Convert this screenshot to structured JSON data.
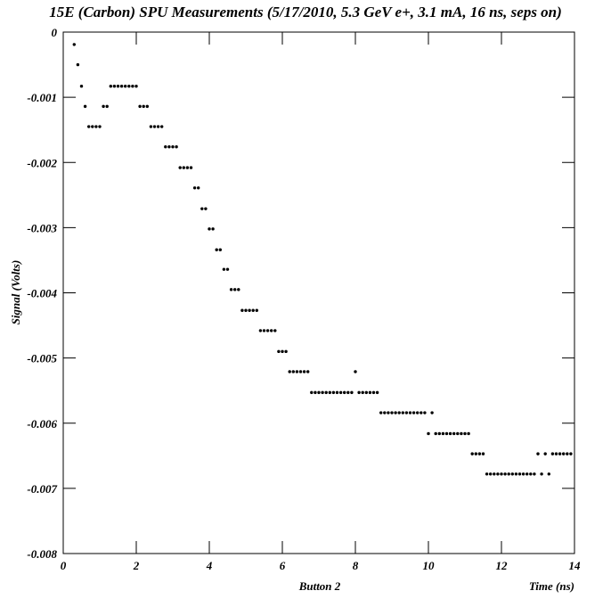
{
  "chart_data": {
    "type": "scatter",
    "title": "15E (Carbon) SPU Measurements (5/17/2010, 5.3 GeV e+, 3.1 mA, 16 ns, seps on)",
    "x_label": "Time (ns)",
    "x_sublabel": "Button 2",
    "y_label": "Signal (Volts)",
    "color": "#000000",
    "xlim": [
      0,
      14
    ],
    "xticks": [
      0,
      2,
      4,
      6,
      8,
      10,
      12,
      14
    ],
    "ylim": [
      -0.008,
      0
    ],
    "yticks": [
      0,
      -0.001,
      -0.002,
      -0.003,
      -0.004,
      -0.005,
      -0.006,
      -0.007,
      -0.008
    ],
    "x": [
      0.3,
      0.4,
      0.5,
      0.6,
      0.7,
      0.8,
      0.9,
      1.0,
      1.1,
      1.2,
      1.3,
      1.4,
      1.5,
      1.6,
      1.7,
      1.8,
      1.9,
      2.0,
      2.1,
      2.2,
      2.3,
      2.4,
      2.5,
      2.6,
      2.7,
      2.8,
      2.9,
      3.0,
      3.1,
      3.2,
      3.3,
      3.4,
      3.5,
      3.6,
      3.7,
      3.8,
      3.9,
      4.0,
      4.1,
      4.2,
      4.3,
      4.4,
      4.5,
      4.6,
      4.7,
      4.8,
      4.9,
      5.0,
      5.1,
      5.2,
      5.3,
      5.4,
      5.5,
      5.6,
      5.7,
      5.8,
      5.9,
      6.0,
      6.1,
      6.2,
      6.3,
      6.4,
      6.5,
      6.6,
      6.7,
      6.8,
      6.9,
      7.0,
      7.1,
      7.2,
      7.3,
      7.4,
      7.5,
      7.6,
      7.7,
      7.8,
      7.9,
      8.0,
      8.1,
      8.2,
      8.3,
      8.4,
      8.5,
      8.6,
      8.7,
      8.8,
      8.9,
      9.0,
      9.1,
      9.2,
      9.3,
      9.4,
      9.5,
      9.6,
      9.7,
      9.8,
      9.9,
      10.0,
      10.1,
      10.2,
      10.3,
      10.4,
      10.5,
      10.6,
      10.7,
      10.8,
      10.9,
      11.0,
      11.1,
      11.2,
      11.3,
      11.4,
      11.5,
      11.6,
      11.7,
      11.8,
      11.9,
      12.0,
      12.1,
      12.2,
      12.3,
      12.4,
      12.5,
      12.6,
      12.7,
      12.8,
      12.9,
      13.0,
      13.1,
      13.2,
      13.3,
      13.4,
      13.5,
      13.6,
      13.7,
      13.8,
      13.9
    ],
    "values": [
      -0.00019,
      -0.0005,
      -0.00083,
      -0.00114,
      -0.00145,
      -0.00145,
      -0.00145,
      -0.00145,
      -0.00114,
      -0.00114,
      -0.00083,
      -0.00083,
      -0.00083,
      -0.00083,
      -0.00083,
      -0.00083,
      -0.00083,
      -0.00083,
      -0.00114,
      -0.00114,
      -0.00114,
      -0.00145,
      -0.00145,
      -0.00145,
      -0.00145,
      -0.00176,
      -0.00176,
      -0.00176,
      -0.00176,
      -0.00208,
      -0.00208,
      -0.00208,
      -0.00208,
      -0.00239,
      -0.00239,
      -0.00271,
      -0.00271,
      -0.00302,
      -0.00302,
      -0.00334,
      -0.00334,
      -0.00364,
      -0.00364,
      -0.00395,
      -0.00395,
      -0.00395,
      -0.00427,
      -0.00427,
      -0.00427,
      -0.00427,
      -0.00427,
      -0.00458,
      -0.00458,
      -0.00458,
      -0.00458,
      -0.00458,
      -0.0049,
      -0.0049,
      -0.0049,
      -0.00521,
      -0.00521,
      -0.00521,
      -0.00521,
      -0.00521,
      -0.00521,
      -0.00553,
      -0.00553,
      -0.00553,
      -0.00553,
      -0.00553,
      -0.00553,
      -0.00553,
      -0.00553,
      -0.00553,
      -0.00553,
      -0.00553,
      -0.00553,
      -0.00521,
      -0.00553,
      -0.00553,
      -0.00553,
      -0.00553,
      -0.00553,
      -0.00553,
      -0.00584,
      -0.00584,
      -0.00584,
      -0.00584,
      -0.00584,
      -0.00584,
      -0.00584,
      -0.00584,
      -0.00584,
      -0.00584,
      -0.00584,
      -0.00584,
      -0.00584,
      -0.00616,
      -0.00584,
      -0.00616,
      -0.00616,
      -0.00616,
      -0.00616,
      -0.00616,
      -0.00616,
      -0.00616,
      -0.00616,
      -0.00616,
      -0.00616,
      -0.00647,
      -0.00647,
      -0.00647,
      -0.00647,
      -0.00678,
      -0.00678,
      -0.00678,
      -0.00678,
      -0.00678,
      -0.00678,
      -0.00678,
      -0.00678,
      -0.00678,
      -0.00678,
      -0.00678,
      -0.00678,
      -0.00678,
      -0.00678,
      -0.00647,
      -0.00678,
      -0.00647,
      -0.00678,
      -0.00647,
      -0.00647,
      -0.00647,
      -0.00647,
      -0.00647,
      -0.00647
    ]
  }
}
